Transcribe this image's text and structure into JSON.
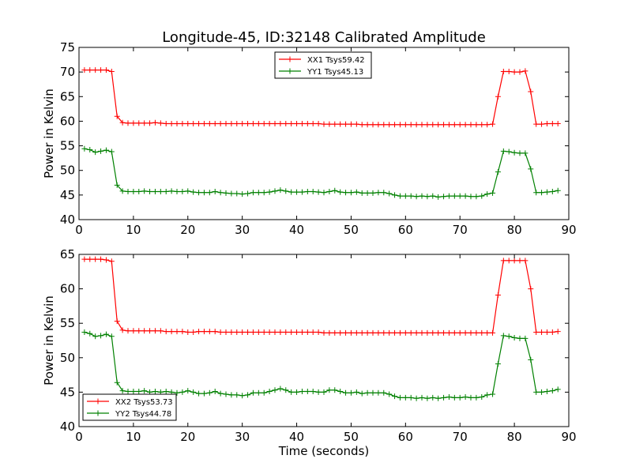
{
  "figure": {
    "title": "Longitude-45, ID:32148 Calibrated Amplitude"
  },
  "colors": {
    "xx": "#ff0000",
    "yy": "#008000",
    "axis": "#000000",
    "background": "#ffffff"
  },
  "chart_data": [
    {
      "type": "line",
      "title": "Longitude-45, ID:32148 Calibrated Amplitude",
      "xlabel": "",
      "ylabel": "Power in Kelvin",
      "xlim": [
        0,
        90
      ],
      "ylim": [
        40,
        75
      ],
      "xticks": [
        0,
        10,
        20,
        30,
        40,
        50,
        60,
        70,
        80,
        90
      ],
      "yticks": [
        40,
        45,
        50,
        55,
        60,
        65,
        70,
        75
      ],
      "grid": false,
      "legend_position": "top-center",
      "marker": "plus",
      "series": [
        {
          "name": "XX1 Tsys59.42",
          "color": "#ff0000",
          "x": [
            1,
            2,
            3,
            4,
            5,
            6,
            7,
            8,
            9,
            10,
            11,
            12,
            13,
            14,
            15,
            16,
            17,
            18,
            19,
            20,
            21,
            22,
            23,
            24,
            25,
            26,
            27,
            28,
            29,
            30,
            31,
            32,
            33,
            34,
            35,
            36,
            37,
            38,
            39,
            40,
            41,
            42,
            43,
            44,
            45,
            46,
            47,
            48,
            49,
            50,
            51,
            52,
            53,
            54,
            55,
            56,
            57,
            58,
            59,
            60,
            61,
            62,
            63,
            64,
            65,
            66,
            67,
            68,
            69,
            70,
            71,
            72,
            73,
            74,
            75,
            76,
            77,
            78,
            79,
            80,
            81,
            82,
            83,
            84,
            85,
            86,
            87,
            88
          ],
          "y": [
            70.4,
            70.4,
            70.4,
            70.4,
            70.4,
            70.1,
            61.0,
            59.7,
            59.6,
            59.6,
            59.6,
            59.6,
            59.6,
            59.7,
            59.6,
            59.5,
            59.5,
            59.5,
            59.5,
            59.5,
            59.5,
            59.5,
            59.5,
            59.5,
            59.5,
            59.5,
            59.5,
            59.5,
            59.5,
            59.5,
            59.5,
            59.5,
            59.5,
            59.5,
            59.5,
            59.5,
            59.5,
            59.5,
            59.5,
            59.5,
            59.5,
            59.5,
            59.5,
            59.5,
            59.4,
            59.4,
            59.4,
            59.4,
            59.4,
            59.4,
            59.4,
            59.3,
            59.3,
            59.3,
            59.3,
            59.3,
            59.3,
            59.3,
            59.3,
            59.3,
            59.3,
            59.3,
            59.3,
            59.3,
            59.3,
            59.3,
            59.3,
            59.3,
            59.3,
            59.3,
            59.3,
            59.3,
            59.3,
            59.3,
            59.3,
            59.4,
            65.0,
            70.1,
            70.1,
            70.0,
            70.0,
            70.2,
            66.0,
            59.4,
            59.4,
            59.5,
            59.5,
            59.5
          ]
        },
        {
          "name": "YY1 Tsys45.13",
          "color": "#008000",
          "x": [
            1,
            2,
            3,
            4,
            5,
            6,
            7,
            8,
            9,
            10,
            11,
            12,
            13,
            14,
            15,
            16,
            17,
            18,
            19,
            20,
            21,
            22,
            23,
            24,
            25,
            26,
            27,
            28,
            29,
            30,
            31,
            32,
            33,
            34,
            35,
            36,
            37,
            38,
            39,
            40,
            41,
            42,
            43,
            44,
            45,
            46,
            47,
            48,
            49,
            50,
            51,
            52,
            53,
            54,
            55,
            56,
            57,
            58,
            59,
            60,
            61,
            62,
            63,
            64,
            65,
            66,
            67,
            68,
            69,
            70,
            71,
            72,
            73,
            74,
            75,
            76,
            77,
            78,
            79,
            80,
            81,
            82,
            83,
            84,
            85,
            86,
            87,
            88
          ],
          "y": [
            54.4,
            54.2,
            53.7,
            53.9,
            54.1,
            53.8,
            47.0,
            45.8,
            45.7,
            45.7,
            45.7,
            45.8,
            45.7,
            45.7,
            45.7,
            45.7,
            45.8,
            45.7,
            45.7,
            45.8,
            45.6,
            45.5,
            45.5,
            45.5,
            45.7,
            45.5,
            45.4,
            45.3,
            45.3,
            45.2,
            45.3,
            45.5,
            45.5,
            45.5,
            45.6,
            45.8,
            46.0,
            45.8,
            45.6,
            45.6,
            45.6,
            45.7,
            45.7,
            45.6,
            45.5,
            45.7,
            45.9,
            45.6,
            45.5,
            45.5,
            45.6,
            45.4,
            45.4,
            45.4,
            45.5,
            45.5,
            45.3,
            45.0,
            44.8,
            44.8,
            44.8,
            44.7,
            44.8,
            44.7,
            44.8,
            44.6,
            44.7,
            44.8,
            44.8,
            44.8,
            44.8,
            44.7,
            44.7,
            44.8,
            45.2,
            45.4,
            49.7,
            53.9,
            53.8,
            53.6,
            53.5,
            53.5,
            50.3,
            45.5,
            45.5,
            45.6,
            45.7,
            45.9
          ]
        }
      ]
    },
    {
      "type": "line",
      "title": "",
      "xlabel": "Time (seconds)",
      "ylabel": "Power in Kelvin",
      "xlim": [
        0,
        90
      ],
      "ylim": [
        40,
        65
      ],
      "xticks": [
        0,
        10,
        20,
        30,
        40,
        50,
        60,
        70,
        80,
        90
      ],
      "yticks": [
        40,
        45,
        50,
        55,
        60,
        65
      ],
      "grid": false,
      "legend_position": "bottom-left",
      "marker": "plus",
      "series": [
        {
          "name": "XX2 Tsys53.73",
          "color": "#ff0000",
          "x": [
            1,
            2,
            3,
            4,
            5,
            6,
            7,
            8,
            9,
            10,
            11,
            12,
            13,
            14,
            15,
            16,
            17,
            18,
            19,
            20,
            21,
            22,
            23,
            24,
            25,
            26,
            27,
            28,
            29,
            30,
            31,
            32,
            33,
            34,
            35,
            36,
            37,
            38,
            39,
            40,
            41,
            42,
            43,
            44,
            45,
            46,
            47,
            48,
            49,
            50,
            51,
            52,
            53,
            54,
            55,
            56,
            57,
            58,
            59,
            60,
            61,
            62,
            63,
            64,
            65,
            66,
            67,
            68,
            69,
            70,
            71,
            72,
            73,
            74,
            75,
            76,
            77,
            78,
            79,
            80,
            81,
            82,
            83,
            84,
            85,
            86,
            87,
            88
          ],
          "y": [
            64.3,
            64.3,
            64.3,
            64.3,
            64.2,
            64.0,
            55.3,
            54.0,
            53.9,
            53.9,
            53.9,
            53.9,
            53.9,
            53.9,
            53.9,
            53.8,
            53.8,
            53.8,
            53.8,
            53.7,
            53.7,
            53.8,
            53.8,
            53.8,
            53.8,
            53.7,
            53.7,
            53.7,
            53.7,
            53.7,
            53.7,
            53.7,
            53.7,
            53.7,
            53.7,
            53.7,
            53.7,
            53.7,
            53.7,
            53.7,
            53.7,
            53.7,
            53.7,
            53.7,
            53.6,
            53.6,
            53.6,
            53.6,
            53.6,
            53.6,
            53.6,
            53.6,
            53.6,
            53.6,
            53.6,
            53.6,
            53.6,
            53.6,
            53.6,
            53.6,
            53.6,
            53.6,
            53.6,
            53.6,
            53.6,
            53.6,
            53.6,
            53.6,
            53.6,
            53.6,
            53.6,
            53.6,
            53.6,
            53.6,
            53.6,
            53.6,
            59.1,
            64.1,
            64.1,
            64.1,
            64.1,
            64.1,
            60.0,
            53.7,
            53.7,
            53.7,
            53.7,
            53.8
          ]
        },
        {
          "name": "YY2 Tsys44.78",
          "color": "#008000",
          "x": [
            1,
            2,
            3,
            4,
            5,
            6,
            7,
            8,
            9,
            10,
            11,
            12,
            13,
            14,
            15,
            16,
            17,
            18,
            19,
            20,
            21,
            22,
            23,
            24,
            25,
            26,
            27,
            28,
            29,
            30,
            31,
            32,
            33,
            34,
            35,
            36,
            37,
            38,
            39,
            40,
            41,
            42,
            43,
            44,
            45,
            46,
            47,
            48,
            49,
            50,
            51,
            52,
            53,
            54,
            55,
            56,
            57,
            58,
            59,
            60,
            61,
            62,
            63,
            64,
            65,
            66,
            67,
            68,
            69,
            70,
            71,
            72,
            73,
            74,
            75,
            76,
            77,
            78,
            79,
            80,
            81,
            82,
            83,
            84,
            85,
            86,
            87,
            88
          ],
          "y": [
            53.7,
            53.5,
            53.1,
            53.2,
            53.4,
            53.1,
            46.4,
            45.2,
            45.1,
            45.1,
            45.1,
            45.2,
            45.0,
            45.1,
            45.0,
            45.1,
            45.0,
            44.9,
            45.0,
            45.2,
            45.0,
            44.8,
            44.8,
            44.9,
            45.1,
            44.8,
            44.7,
            44.6,
            44.6,
            44.5,
            44.6,
            44.9,
            44.9,
            44.9,
            45.1,
            45.3,
            45.5,
            45.3,
            45.0,
            45.0,
            45.1,
            45.1,
            45.1,
            45.0,
            45.0,
            45.3,
            45.3,
            45.1,
            44.9,
            44.9,
            45.0,
            44.8,
            44.9,
            44.9,
            44.9,
            44.9,
            44.7,
            44.4,
            44.2,
            44.2,
            44.2,
            44.1,
            44.2,
            44.1,
            44.2,
            44.1,
            44.2,
            44.3,
            44.2,
            44.2,
            44.3,
            44.2,
            44.2,
            44.3,
            44.6,
            44.7,
            49.1,
            53.2,
            53.1,
            52.9,
            52.8,
            52.8,
            49.7,
            45.0,
            45.0,
            45.1,
            45.2,
            45.4
          ]
        }
      ]
    }
  ]
}
